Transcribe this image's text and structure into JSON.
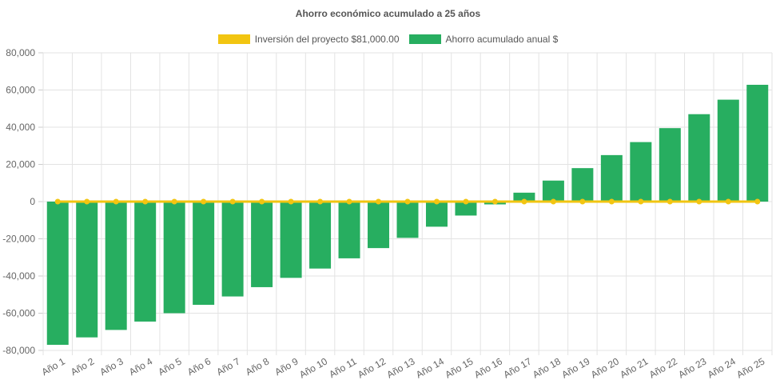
{
  "chart_data": {
    "type": "bar",
    "title": "Ahorro económico acumulado a 25 años",
    "xlabel": "",
    "ylabel": "",
    "ylim": [
      -80000,
      80000
    ],
    "yticks": [
      80000,
      60000,
      40000,
      20000,
      0,
      -20000,
      -40000,
      -60000,
      -80000
    ],
    "ytick_labels": [
      "80,000",
      "60,000",
      "40,000",
      "20,000",
      "0",
      "-20,000",
      "-40,000",
      "-60,000",
      "-80,000"
    ],
    "grid": true,
    "legend": "top",
    "categories": [
      "Año 1",
      "Año 2",
      "Año 3",
      "Año 4",
      "Año 5",
      "Año 6",
      "Año 7",
      "Año 8",
      "Año 9",
      "Año 10",
      "Año 11",
      "Año 12",
      "Año 13",
      "Año 14",
      "Año 15",
      "Año 16",
      "Año 17",
      "Año 18",
      "Año 19",
      "Año 20",
      "Año 21",
      "Año 22",
      "Año 23",
      "Año 24",
      "Año 25"
    ],
    "series": [
      {
        "name": "Inversión del proyecto $81,000.00",
        "kind": "line",
        "color": "#f2c511",
        "values": [
          0,
          0,
          0,
          0,
          0,
          0,
          0,
          0,
          0,
          0,
          0,
          0,
          0,
          0,
          0,
          0,
          0,
          0,
          0,
          0,
          0,
          0,
          0,
          0,
          0
        ]
      },
      {
        "name": "Ahorro acumulado anual $",
        "kind": "bar",
        "color": "#27ae60",
        "values": [
          -77000,
          -73000,
          -69000,
          -64500,
          -60000,
          -55500,
          -51000,
          -46000,
          -41000,
          -36000,
          -30500,
          -25000,
          -19500,
          -13500,
          -7500,
          -1500,
          4800,
          11300,
          18000,
          25000,
          32000,
          39500,
          47000,
          54800,
          62800
        ]
      }
    ]
  }
}
